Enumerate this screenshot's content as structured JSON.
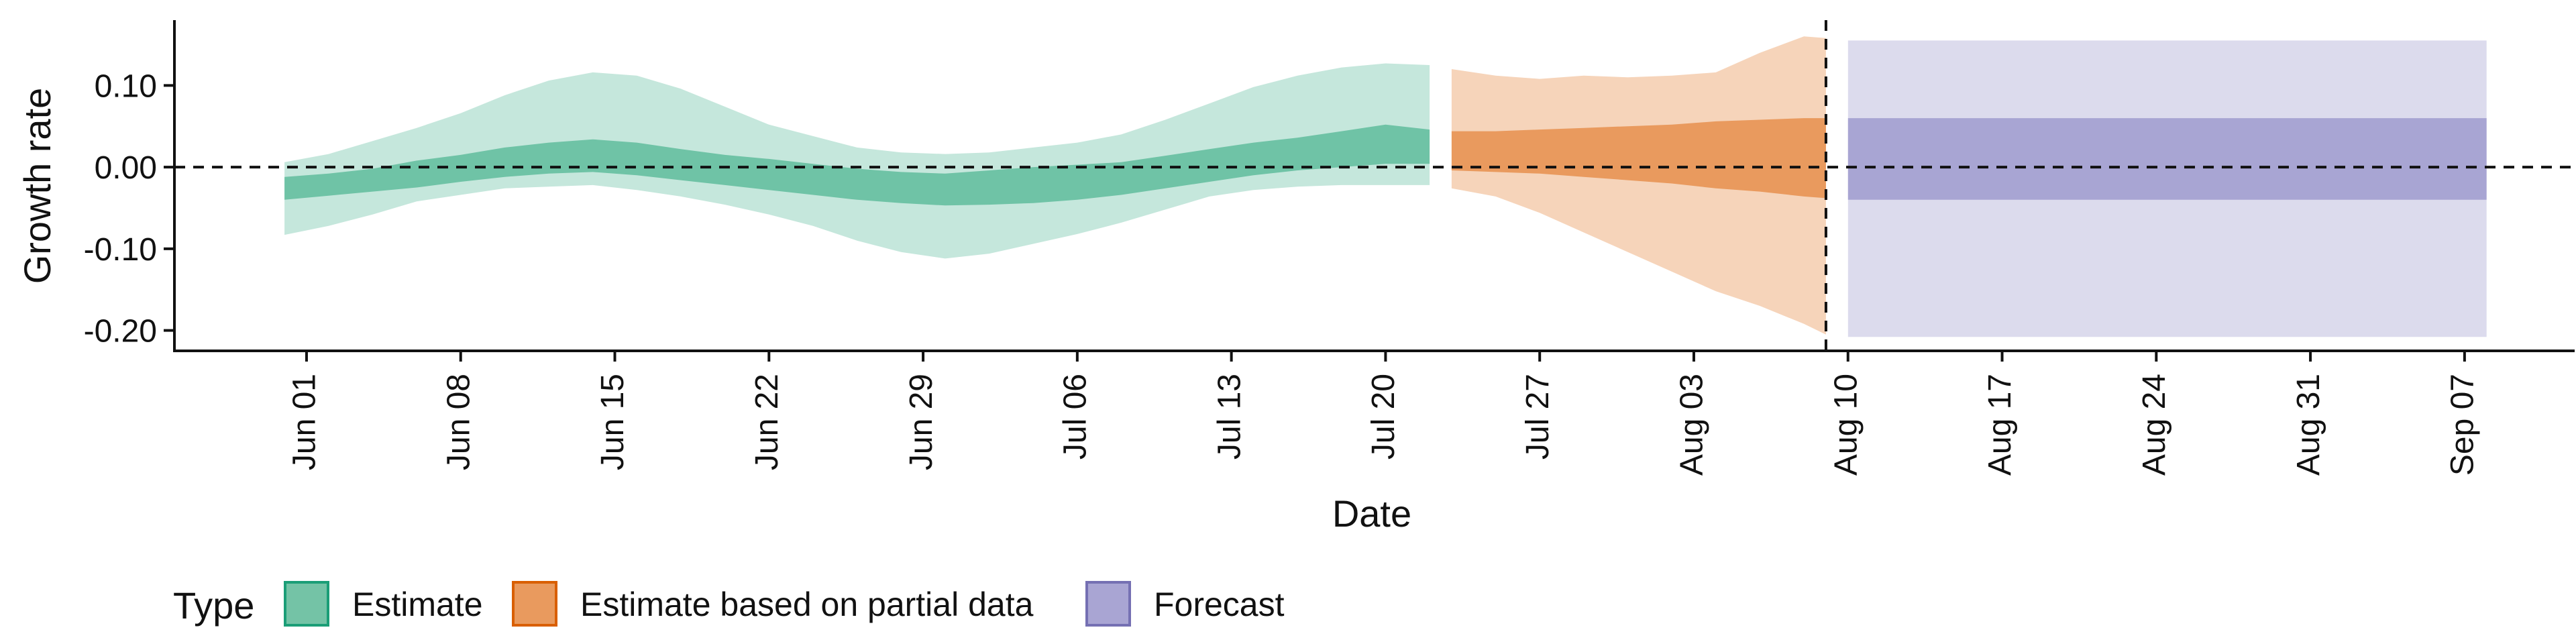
{
  "chart_data": {
    "type": "area",
    "xlabel": "Date",
    "ylabel": "Growth rate",
    "x_axis_type": "date",
    "xlim": [
      "2020-05-26",
      "2020-09-12"
    ],
    "ylim": [
      -0.225,
      0.18
    ],
    "grid": false,
    "legend_position": "bottom-left",
    "x_ticks": [
      "2020-06-01",
      "2020-06-08",
      "2020-06-15",
      "2020-06-22",
      "2020-06-29",
      "2020-07-06",
      "2020-07-13",
      "2020-07-20",
      "2020-07-27",
      "2020-08-03",
      "2020-08-10",
      "2020-08-17",
      "2020-08-24",
      "2020-08-31",
      "2020-09-07"
    ],
    "x_tick_labels": [
      "Jun 01",
      "Jun 08",
      "Jun 15",
      "Jun 22",
      "Jun 29",
      "Jul 06",
      "Jul 13",
      "Jul 20",
      "Jul 27",
      "Aug 03",
      "Aug 10",
      "Aug 17",
      "Aug 24",
      "Aug 31",
      "Sep 07"
    ],
    "y_ticks": [
      0.1,
      0.0,
      -0.1,
      -0.2
    ],
    "y_tick_labels": [
      "0.10",
      "0.00",
      "-0.10",
      "-0.20"
    ],
    "reference_lines": [
      {
        "orientation": "horizontal",
        "y": 0,
        "style": "dashed"
      },
      {
        "orientation": "vertical",
        "x": "2020-08-09",
        "style": "dashed"
      }
    ],
    "legend": {
      "title": "Type",
      "entries": [
        {
          "label": "Estimate",
          "fill": "#74c3a6",
          "stroke": "#1b9e77"
        },
        {
          "label": "Estimate based on partial data",
          "fill": "#e99a5e",
          "stroke": "#d95f02"
        },
        {
          "label": "Forecast",
          "fill": "#a9a5d3",
          "stroke": "#7570b3"
        }
      ]
    },
    "series": [
      {
        "name": "Estimate",
        "color": "#1b9e77",
        "inner_fill": "#6fc3a6",
        "outer_fill": "#c5e7dc",
        "x": [
          "2020-05-31",
          "2020-06-02",
          "2020-06-04",
          "2020-06-06",
          "2020-06-08",
          "2020-06-10",
          "2020-06-12",
          "2020-06-14",
          "2020-06-16",
          "2020-06-18",
          "2020-06-20",
          "2020-06-22",
          "2020-06-24",
          "2020-06-26",
          "2020-06-28",
          "2020-06-30",
          "2020-07-02",
          "2020-07-04",
          "2020-07-06",
          "2020-07-08",
          "2020-07-10",
          "2020-07-12",
          "2020-07-14",
          "2020-07-16",
          "2020-07-18",
          "2020-07-20",
          "2020-07-22"
        ],
        "median": [
          -0.027,
          -0.022,
          -0.016,
          -0.008,
          0.0,
          0.01,
          0.018,
          0.022,
          0.018,
          0.012,
          0.005,
          0.0,
          -0.006,
          -0.012,
          -0.018,
          -0.022,
          -0.02,
          -0.018,
          -0.016,
          -0.012,
          -0.006,
          0.002,
          0.008,
          0.014,
          0.02,
          0.026,
          0.025
        ],
        "inner_lower": [
          -0.04,
          -0.035,
          -0.03,
          -0.025,
          -0.018,
          -0.012,
          -0.008,
          -0.006,
          -0.01,
          -0.016,
          -0.022,
          -0.028,
          -0.034,
          -0.04,
          -0.044,
          -0.047,
          -0.046,
          -0.044,
          -0.04,
          -0.034,
          -0.026,
          -0.018,
          -0.01,
          -0.004,
          0.0,
          0.004,
          0.004
        ],
        "inner_upper": [
          -0.012,
          -0.008,
          -0.002,
          0.008,
          0.015,
          0.024,
          0.03,
          0.034,
          0.03,
          0.022,
          0.015,
          0.01,
          0.004,
          -0.002,
          -0.006,
          -0.008,
          -0.004,
          0.0,
          0.003,
          0.006,
          0.014,
          0.022,
          0.03,
          0.036,
          0.044,
          0.052,
          0.046
        ],
        "outer_lower": [
          -0.083,
          -0.072,
          -0.058,
          -0.042,
          -0.034,
          -0.026,
          -0.024,
          -0.022,
          -0.028,
          -0.036,
          -0.046,
          -0.058,
          -0.072,
          -0.09,
          -0.104,
          -0.112,
          -0.106,
          -0.094,
          -0.082,
          -0.068,
          -0.052,
          -0.036,
          -0.028,
          -0.024,
          -0.022,
          -0.022,
          -0.022
        ],
        "outer_upper": [
          0.006,
          0.016,
          0.032,
          0.048,
          0.066,
          0.088,
          0.106,
          0.116,
          0.112,
          0.096,
          0.074,
          0.052,
          0.038,
          0.024,
          0.018,
          0.016,
          0.018,
          0.024,
          0.03,
          0.04,
          0.058,
          0.078,
          0.098,
          0.112,
          0.122,
          0.127,
          0.125
        ]
      },
      {
        "name": "Estimate based on partial data",
        "color": "#d95f02",
        "inner_fill": "#e99a5e",
        "outer_fill": "#f6d4ba",
        "x": [
          "2020-07-23",
          "2020-07-25",
          "2020-07-27",
          "2020-07-29",
          "2020-07-31",
          "2020-08-02",
          "2020-08-04",
          "2020-08-06",
          "2020-08-08",
          "2020-08-09"
        ],
        "median": [
          0.018,
          0.018,
          0.02,
          0.022,
          0.022,
          0.023,
          0.024,
          0.024,
          0.024,
          0.024
        ],
        "inner_lower": [
          -0.004,
          -0.006,
          -0.008,
          -0.012,
          -0.016,
          -0.02,
          -0.026,
          -0.03,
          -0.036,
          -0.038
        ],
        "inner_upper": [
          0.044,
          0.044,
          0.046,
          0.048,
          0.05,
          0.052,
          0.056,
          0.058,
          0.06,
          0.06
        ],
        "outer_lower": [
          -0.026,
          -0.036,
          -0.056,
          -0.08,
          -0.104,
          -0.128,
          -0.152,
          -0.17,
          -0.192,
          -0.205
        ],
        "outer_upper": [
          0.12,
          0.112,
          0.108,
          0.112,
          0.11,
          0.112,
          0.116,
          0.14,
          0.16,
          0.158
        ]
      },
      {
        "name": "Forecast",
        "color": "#7570b3",
        "inner_fill": "#a8a5d3",
        "outer_fill": "#dcdbed",
        "x": [
          "2020-08-10",
          "2020-09-08"
        ],
        "median": [
          0.012,
          0.012
        ],
        "inner_lower": [
          -0.04,
          -0.04
        ],
        "inner_upper": [
          0.06,
          0.06
        ],
        "outer_lower": [
          -0.208,
          -0.208
        ],
        "outer_upper": [
          0.155,
          0.155
        ]
      }
    ]
  }
}
